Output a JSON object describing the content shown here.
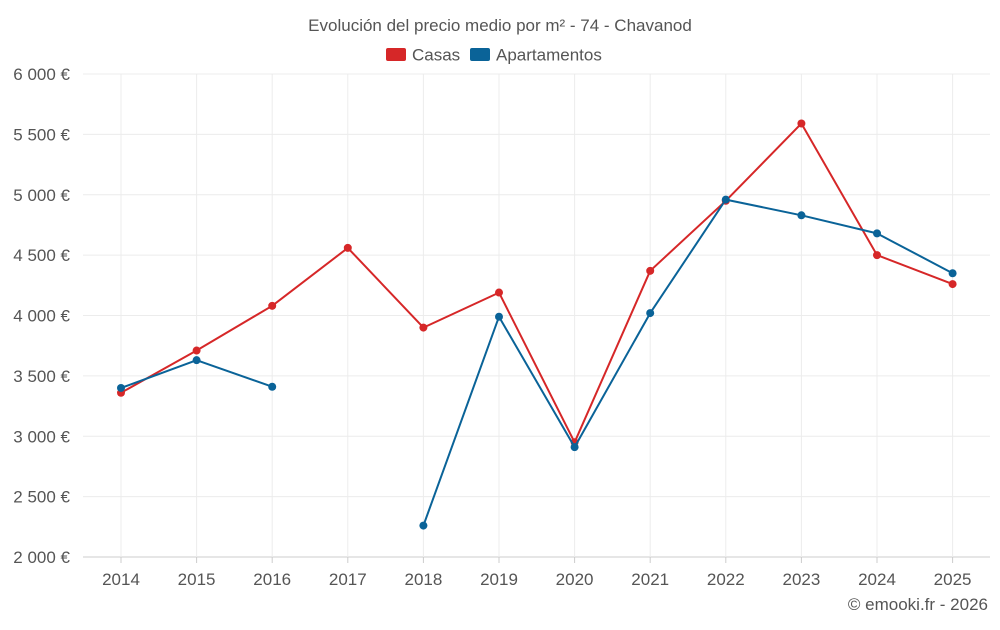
{
  "chart_data": {
    "type": "line",
    "title": "Evolución del precio medio por m² - 74 - Chavanod",
    "xlabel": "",
    "ylabel": "",
    "categories": [
      "2014",
      "2015",
      "2016",
      "2017",
      "2018",
      "2019",
      "2020",
      "2021",
      "2022",
      "2023",
      "2024",
      "2025"
    ],
    "ylim": [
      2000,
      6000
    ],
    "yticks": [
      2000,
      2500,
      3000,
      3500,
      4000,
      4500,
      5000,
      5500,
      6000
    ],
    "ytick_labels": [
      "2 000 €",
      "2 500 €",
      "3 000 €",
      "3 500 €",
      "4 000 €",
      "4 500 €",
      "5 000 €",
      "5 500 €",
      "6 000 €"
    ],
    "grid": true,
    "legend_position": "top-center",
    "series": [
      {
        "name": "Casas",
        "color": "#d62728",
        "values": [
          3360,
          3710,
          4080,
          4560,
          3900,
          4190,
          2950,
          4370,
          4950,
          5590,
          4500,
          4260
        ]
      },
      {
        "name": "Apartamentos",
        "color": "#0a6398",
        "values": [
          3400,
          3630,
          3410,
          null,
          2260,
          3990,
          2910,
          4020,
          4960,
          4830,
          4680,
          4350
        ]
      }
    ]
  },
  "footer": {
    "copyright": "© emooki.fr - 2026"
  }
}
